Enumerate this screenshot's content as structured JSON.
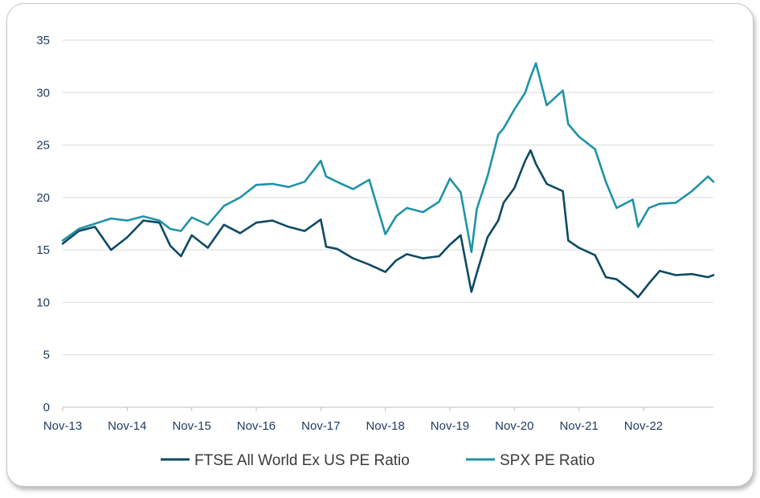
{
  "chart_data": {
    "type": "line",
    "title": "",
    "xlabel": "",
    "ylabel": "",
    "ylim": [
      0,
      35
    ],
    "y_ticks": [
      "0",
      "5",
      "10",
      "15",
      "20",
      "25",
      "30",
      "35"
    ],
    "x_ticks": [
      "Nov-13",
      "Nov-14",
      "Nov-15",
      "Nov-16",
      "Nov-17",
      "Nov-18",
      "Nov-19",
      "Nov-20",
      "Nov-21",
      "Nov-22"
    ],
    "grid": "horizontal",
    "legend_position": "bottom",
    "x_range": [
      "2013-11",
      "2023-12"
    ],
    "series": [
      {
        "name": "FTSE All World Ex US PE Ratio",
        "color": "#0d4a63",
        "x": [
          "2013-11",
          "2014-02",
          "2014-05",
          "2014-08",
          "2014-11",
          "2015-02",
          "2015-05",
          "2015-07",
          "2015-09",
          "2015-11",
          "2016-02",
          "2016-05",
          "2016-08",
          "2016-11",
          "2017-02",
          "2017-05",
          "2017-08",
          "2017-11",
          "2017-12",
          "2018-02",
          "2018-05",
          "2018-08",
          "2018-11",
          "2019-01",
          "2019-03",
          "2019-06",
          "2019-09",
          "2019-11",
          "2020-01",
          "2020-03",
          "2020-04",
          "2020-06",
          "2020-08",
          "2020-09",
          "2020-11",
          "2021-01",
          "2021-02",
          "2021-03",
          "2021-05",
          "2021-08",
          "2021-09",
          "2021-11",
          "2022-02",
          "2022-04",
          "2022-06",
          "2022-09",
          "2022-10",
          "2022-12",
          "2023-02",
          "2023-05",
          "2023-08",
          "2023-11",
          "2023-12"
        ],
        "values": [
          15.6,
          16.8,
          17.2,
          15.0,
          16.2,
          17.8,
          17.6,
          15.4,
          14.4,
          16.4,
          15.2,
          17.4,
          16.6,
          17.6,
          17.8,
          17.2,
          16.8,
          17.9,
          15.3,
          15.1,
          14.2,
          13.6,
          12.9,
          14.0,
          14.6,
          14.2,
          14.4,
          15.5,
          16.4,
          11.0,
          12.8,
          16.2,
          17.8,
          19.5,
          20.9,
          23.5,
          24.5,
          23.2,
          21.3,
          20.6,
          15.9,
          15.2,
          14.5,
          12.4,
          12.2,
          11.0,
          10.5,
          11.8,
          13.0,
          12.6,
          12.7,
          12.4,
          12.6
        ]
      },
      {
        "name": "SPX PE Ratio",
        "color": "#1f93a6",
        "x": [
          "2013-11",
          "2014-02",
          "2014-05",
          "2014-08",
          "2014-11",
          "2015-02",
          "2015-05",
          "2015-07",
          "2015-09",
          "2015-11",
          "2016-02",
          "2016-05",
          "2016-08",
          "2016-11",
          "2017-02",
          "2017-05",
          "2017-08",
          "2017-11",
          "2017-12",
          "2018-02",
          "2018-05",
          "2018-08",
          "2018-11",
          "2019-01",
          "2019-03",
          "2019-06",
          "2019-09",
          "2019-11",
          "2020-01",
          "2020-03",
          "2020-04",
          "2020-06",
          "2020-08",
          "2020-09",
          "2020-11",
          "2021-01",
          "2021-02",
          "2021-03",
          "2021-05",
          "2021-08",
          "2021-09",
          "2021-11",
          "2022-02",
          "2022-04",
          "2022-06",
          "2022-09",
          "2022-10",
          "2022-12",
          "2023-02",
          "2023-05",
          "2023-08",
          "2023-11",
          "2023-12"
        ],
        "values": [
          15.9,
          17.0,
          17.5,
          18.0,
          17.8,
          18.2,
          17.8,
          17.0,
          16.8,
          18.1,
          17.4,
          19.2,
          20.0,
          21.2,
          21.3,
          21.0,
          21.5,
          23.5,
          22.0,
          21.5,
          20.8,
          21.7,
          16.5,
          18.2,
          19.0,
          18.6,
          19.6,
          21.8,
          20.5,
          14.8,
          18.9,
          22.0,
          26.0,
          26.6,
          28.4,
          30.0,
          31.5,
          32.8,
          28.8,
          30.2,
          27.0,
          25.8,
          24.6,
          21.5,
          19.0,
          19.8,
          17.2,
          19.0,
          19.4,
          19.5,
          20.6,
          22.0,
          21.5
        ]
      }
    ]
  }
}
